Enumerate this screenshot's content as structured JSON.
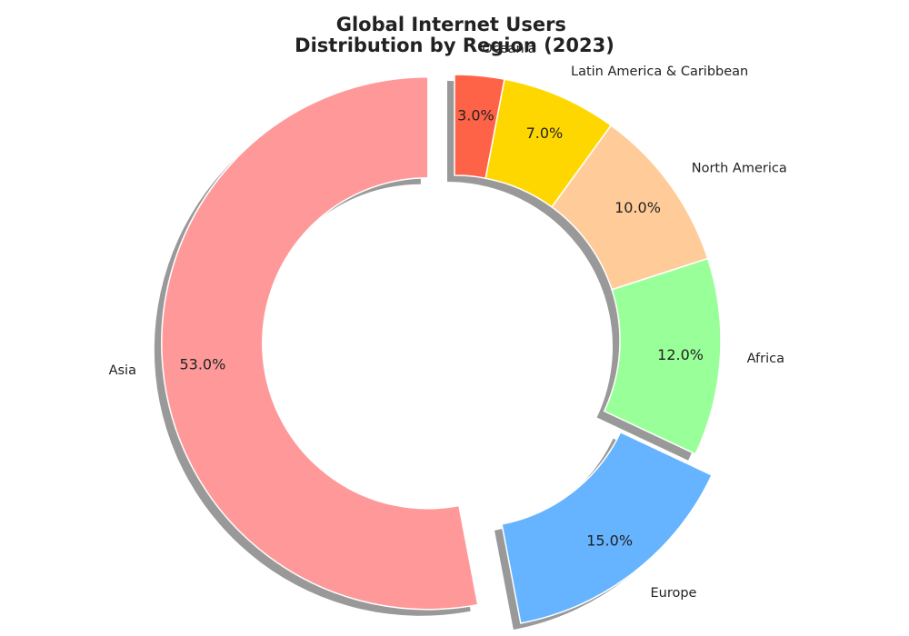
{
  "chart_data": {
    "type": "pie",
    "style": "donut",
    "title": "Global Internet Users\nDistribution by Region (2023)",
    "categories": [
      "Asia",
      "Europe",
      "Africa",
      "North America",
      "Latin America & Caribbean",
      "Oceania"
    ],
    "values": [
      53.0,
      15.0,
      12.0,
      10.0,
      7.0,
      3.0
    ],
    "value_labels": [
      "53.0%",
      "15.0%",
      "12.0%",
      "10.0%",
      "7.0%",
      "3.0%"
    ],
    "colors": [
      "#ff9999",
      "#66b3ff",
      "#99ff99",
      "#ffcc99",
      "#ffd700",
      "#ff6347"
    ],
    "exploded": [
      "Asia",
      "Europe"
    ],
    "shadow": true,
    "start_angle_deg": 90,
    "direction": "counterclockwise",
    "legend": "none"
  }
}
